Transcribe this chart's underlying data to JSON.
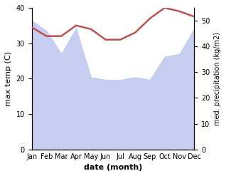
{
  "months": [
    "Jan",
    "Feb",
    "Mar",
    "Apr",
    "May",
    "Jun",
    "Jul",
    "Aug",
    "Sep",
    "Oct",
    "Nov",
    "Dec"
  ],
  "temperature": [
    34.5,
    32.0,
    32.0,
    35.0,
    34.0,
    31.0,
    31.0,
    33.0,
    37.0,
    40.0,
    39.0,
    37.5
  ],
  "precipitation": [
    50,
    46,
    37,
    47,
    28,
    27,
    27,
    28,
    27,
    36,
    37,
    47
  ],
  "temp_color": "#c0504d",
  "precip_fill_color": "#c5cdf0",
  "temp_ylim": [
    0,
    40
  ],
  "precip_ylim": [
    0,
    55
  ],
  "temp_yticks": [
    0,
    10,
    20,
    30,
    40
  ],
  "precip_yticks": [
    0,
    10,
    20,
    30,
    40,
    50
  ],
  "xlabel": "date (month)",
  "ylabel_left": "max temp (C)",
  "ylabel_right": "med. precipitation (kg/m2)",
  "fig_width": 3.18,
  "fig_height": 2.47,
  "dpi": 100
}
